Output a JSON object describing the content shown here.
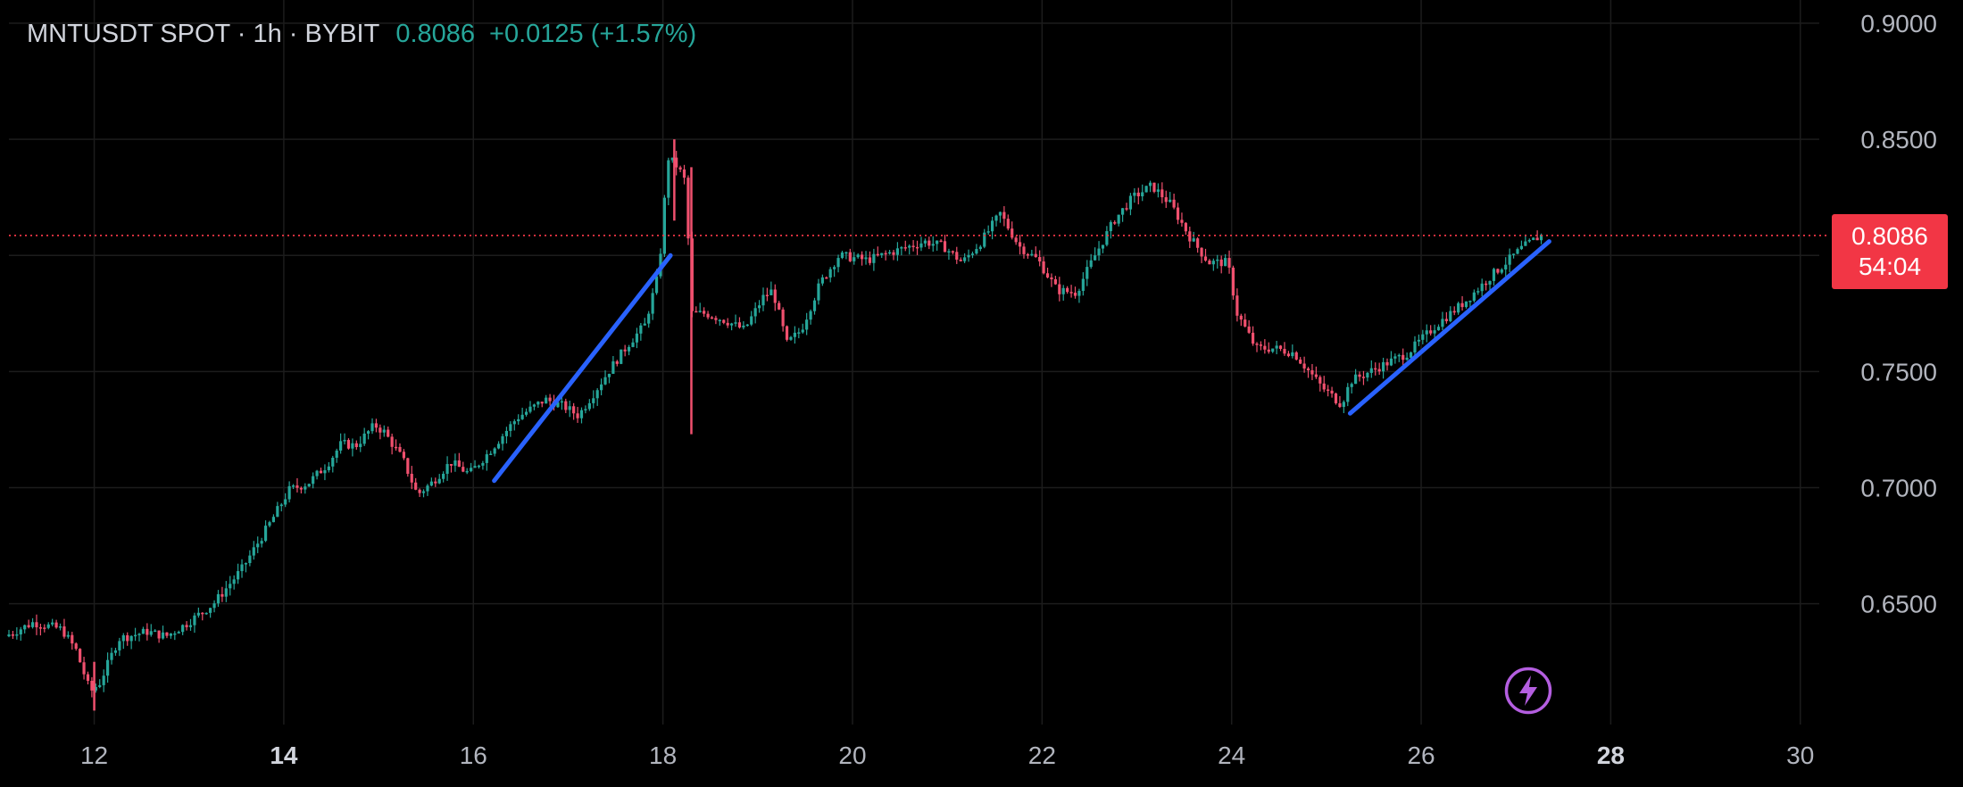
{
  "legend": {
    "symbol": "MNTUSDT SPOT · 1h · BYBIT",
    "price": "0.8086",
    "change": "+0.0125 (+1.57%)"
  },
  "price_tag": {
    "price": "0.8086",
    "countdown": "54:04"
  },
  "colors": {
    "up": "#26a69a",
    "down": "#f0506e",
    "trendline": "#2962ff",
    "price_line": "#f23645",
    "grid": "#1c1c1c",
    "axis_text": "#b2b5be",
    "bolt": "#b45ee0"
  },
  "icons": {
    "bolt": "lightning-bolt-icon"
  },
  "chart_data": {
    "type": "candlestick",
    "x_axis": {
      "unit": "day",
      "range": [
        11.1,
        30.2
      ],
      "ticks": [
        {
          "value": 12,
          "label": "12",
          "bold": false
        },
        {
          "value": 14,
          "label": "14",
          "bold": true
        },
        {
          "value": 16,
          "label": "16",
          "bold": false
        },
        {
          "value": 18,
          "label": "18",
          "bold": false
        },
        {
          "value": 20,
          "label": "20",
          "bold": false
        },
        {
          "value": 22,
          "label": "22",
          "bold": false
        },
        {
          "value": 24,
          "label": "24",
          "bold": false
        },
        {
          "value": 26,
          "label": "26",
          "bold": false
        },
        {
          "value": 28,
          "label": "28",
          "bold": true
        },
        {
          "value": 30,
          "label": "30",
          "bold": false
        }
      ]
    },
    "y_axis": {
      "range": [
        0.598,
        0.91
      ],
      "ticks": [
        {
          "value": 0.65,
          "label": "0.6500"
        },
        {
          "value": 0.7,
          "label": "0.7000"
        },
        {
          "value": 0.75,
          "label": "0.7500"
        },
        {
          "value": 0.85,
          "label": "0.8500"
        },
        {
          "value": 0.9,
          "label": "0.9000"
        }
      ]
    },
    "last_price": 0.8086,
    "price_path": [
      [
        11.1,
        0.636
      ],
      [
        11.4,
        0.642
      ],
      [
        11.7,
        0.639
      ],
      [
        11.85,
        0.63
      ],
      [
        12.0,
        0.612
      ],
      [
        12.1,
        0.616
      ],
      [
        12.3,
        0.635
      ],
      [
        12.6,
        0.638
      ],
      [
        12.8,
        0.636
      ],
      [
        13.0,
        0.641
      ],
      [
        13.3,
        0.65
      ],
      [
        13.6,
        0.665
      ],
      [
        13.9,
        0.685
      ],
      [
        14.1,
        0.699
      ],
      [
        14.3,
        0.702
      ],
      [
        14.5,
        0.71
      ],
      [
        14.65,
        0.719
      ],
      [
        14.8,
        0.718
      ],
      [
        15.0,
        0.727
      ],
      [
        15.1,
        0.724
      ],
      [
        15.3,
        0.712
      ],
      [
        15.45,
        0.697
      ],
      [
        15.6,
        0.702
      ],
      [
        15.8,
        0.711
      ],
      [
        16.0,
        0.706
      ],
      [
        16.2,
        0.715
      ],
      [
        16.5,
        0.73
      ],
      [
        16.8,
        0.738
      ],
      [
        17.0,
        0.735
      ],
      [
        17.15,
        0.731
      ],
      [
        17.3,
        0.74
      ],
      [
        17.5,
        0.752
      ],
      [
        17.7,
        0.763
      ],
      [
        17.85,
        0.77
      ],
      [
        18.0,
        0.793
      ],
      [
        18.05,
        0.82
      ],
      [
        18.1,
        0.842
      ],
      [
        18.2,
        0.838
      ],
      [
        18.3,
        0.83
      ],
      [
        18.32,
        0.775
      ],
      [
        18.5,
        0.775
      ],
      [
        18.7,
        0.772
      ],
      [
        18.9,
        0.768
      ],
      [
        19.1,
        0.782
      ],
      [
        19.2,
        0.785
      ],
      [
        19.35,
        0.762
      ],
      [
        19.5,
        0.768
      ],
      [
        19.7,
        0.788
      ],
      [
        19.9,
        0.8
      ],
      [
        20.2,
        0.798
      ],
      [
        20.5,
        0.802
      ],
      [
        20.8,
        0.806
      ],
      [
        21.0,
        0.804
      ],
      [
        21.2,
        0.797
      ],
      [
        21.4,
        0.806
      ],
      [
        21.6,
        0.818
      ],
      [
        21.8,
        0.804
      ],
      [
        22.0,
        0.798
      ],
      [
        22.2,
        0.785
      ],
      [
        22.4,
        0.784
      ],
      [
        22.6,
        0.8
      ],
      [
        22.8,
        0.815
      ],
      [
        23.0,
        0.825
      ],
      [
        23.2,
        0.83
      ],
      [
        23.4,
        0.822
      ],
      [
        23.6,
        0.808
      ],
      [
        23.8,
        0.797
      ],
      [
        24.0,
        0.797
      ],
      [
        24.1,
        0.775
      ],
      [
        24.3,
        0.76
      ],
      [
        24.5,
        0.76
      ],
      [
        24.7,
        0.758
      ],
      [
        25.0,
        0.743
      ],
      [
        25.2,
        0.736
      ],
      [
        25.3,
        0.746
      ],
      [
        25.6,
        0.752
      ],
      [
        25.9,
        0.758
      ],
      [
        26.2,
        0.77
      ],
      [
        26.5,
        0.78
      ],
      [
        26.8,
        0.792
      ],
      [
        27.1,
        0.803
      ],
      [
        27.3,
        0.8086
      ]
    ],
    "wicks": [
      {
        "x": 18.12,
        "high": 0.85,
        "low": 0.815
      },
      {
        "x": 18.3,
        "high": 0.838,
        "low": 0.723
      },
      {
        "x": 12.0,
        "high": 0.625,
        "low": 0.604
      }
    ],
    "trendlines": [
      {
        "start": [
          16.22,
          0.703
        ],
        "end": [
          18.08,
          0.8
        ]
      },
      {
        "start": [
          25.25,
          0.732
        ],
        "end": [
          27.35,
          0.806
        ]
      }
    ]
  }
}
